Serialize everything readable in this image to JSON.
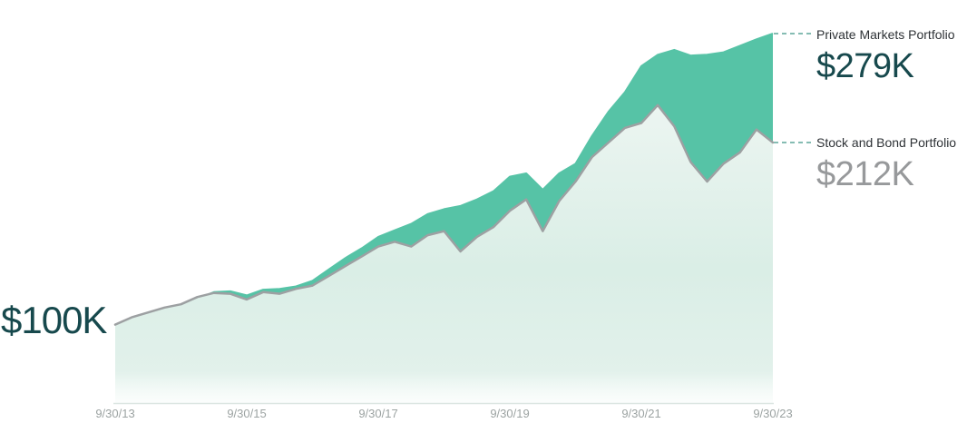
{
  "chart_data": {
    "type": "area",
    "title": "",
    "start_value_label": "$100K",
    "value_unit": "$K (thousands of dollars)",
    "x_axis": {
      "start": "9/30/13",
      "end": "9/30/23",
      "ticks": [
        {
          "month": 0,
          "label": "9/30/13"
        },
        {
          "month": 24,
          "label": "9/30/15"
        },
        {
          "month": 48,
          "label": "9/30/17"
        },
        {
          "month": 72,
          "label": "9/30/19"
        },
        {
          "month": 96,
          "label": "9/30/21"
        },
        {
          "month": 120,
          "label": "9/30/23"
        }
      ]
    },
    "y_axis": {
      "start_value": 100,
      "grid": false,
      "visible_axis_line": true
    },
    "months": [
      0,
      3,
      6,
      9,
      12,
      15,
      18,
      21,
      24,
      27,
      30,
      33,
      36,
      39,
      42,
      45,
      48,
      51,
      54,
      57,
      60,
      63,
      66,
      69,
      72,
      75,
      78,
      81,
      84,
      87,
      90,
      93,
      96,
      99,
      102,
      105,
      108,
      111,
      114,
      117,
      120
    ],
    "series": [
      {
        "name": "Private Markets Portfolio",
        "end_value_label": "$279K",
        "end_value": 279,
        "values": [
          100,
          103,
          106,
          109,
          111,
          116,
          120,
          120.5,
          118,
          121.5,
          122,
          123.5,
          127,
          134,
          141,
          147,
          154,
          158,
          162,
          168,
          171,
          173,
          177,
          182,
          191,
          193,
          183,
          193,
          199,
          216,
          231,
          243,
          259,
          266,
          269,
          265.5,
          266,
          267.5,
          271.5,
          275.5,
          279
        ]
      },
      {
        "name": "Stock and Bond Portfolio",
        "end_value_label": "$212K",
        "end_value": 212,
        "values": [
          100,
          104.5,
          107.5,
          110.5,
          112.5,
          117,
          119.5,
          119,
          115.5,
          120,
          119,
          122,
          124,
          130,
          136,
          142,
          148,
          151,
          148,
          155,
          157.5,
          145,
          154,
          160,
          170,
          177,
          157.5,
          176,
          188,
          203,
          212,
          221,
          224,
          235,
          222,
          200,
          188,
          199,
          206,
          220,
          212
        ]
      }
    ],
    "legend_position": "right"
  },
  "legend": {
    "private": {
      "label": "Private Markets Portfolio",
      "value": "$279K"
    },
    "stocks": {
      "label": "Stock and Bond Portfolio",
      "value": "$212K"
    }
  },
  "colors": {
    "private_fill": "#56C3A6",
    "private_line": "#56C3A6",
    "stocks_line": "#9DA0A2",
    "mint_top": "#ECF5F1",
    "mint_mid": "#DAEEE6",
    "mint_low": "#E2F1EB",
    "dark_teal_text": "#17494D",
    "gray_text": "#97999B",
    "label_text": "#2E3236",
    "axis_label": "#9CA3A2",
    "baseline": "#DCE6E2",
    "leader_dash": "#85BCB3"
  }
}
